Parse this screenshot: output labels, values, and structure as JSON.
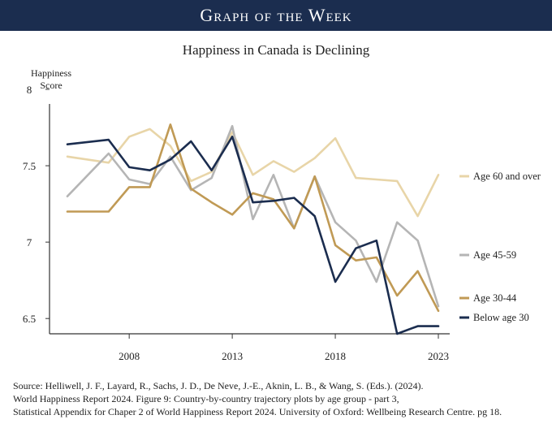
{
  "header": {
    "banner": "Graph of the Week"
  },
  "chart_data": {
    "type": "line",
    "title": "Happiness in Canada is Declining",
    "ylabel": [
      "Happiness",
      "Score"
    ],
    "xlabel": "",
    "xlim": [
      2005,
      2023
    ],
    "ylim": [
      6.4,
      8
    ],
    "yticks": [
      6.5,
      7,
      7.5,
      8
    ],
    "ytick_labels": [
      "6.5",
      "7",
      "7.5",
      "8"
    ],
    "xticks": [
      2008,
      2013,
      2018,
      2023
    ],
    "xtick_labels": [
      "2008",
      "2013",
      "2018",
      "2023"
    ],
    "grid": false,
    "legend": "right, labels at line ends",
    "x": [
      2005,
      2007,
      2008,
      2009,
      2010,
      2011,
      2012,
      2013,
      2014,
      2015,
      2016,
      2017,
      2018,
      2019,
      2020,
      2021,
      2022,
      2023
    ],
    "series": [
      {
        "name": "Age 60 and over",
        "color": "#e8d5a8",
        "values": [
          7.56,
          7.52,
          7.69,
          7.74,
          7.63,
          7.4,
          7.46,
          7.72,
          7.44,
          7.53,
          7.46,
          7.55,
          7.68,
          7.42,
          7.41,
          7.4,
          7.17,
          7.44
        ]
      },
      {
        "name": "Age 45-59",
        "color": "#b5b5b5",
        "values": [
          7.3,
          7.58,
          7.41,
          7.38,
          7.56,
          7.34,
          7.42,
          7.76,
          7.15,
          7.44,
          7.09,
          7.43,
          7.13,
          7.01,
          6.74,
          7.13,
          7.01,
          6.58
        ]
      },
      {
        "name": "Age 30-44",
        "color": "#c09a55",
        "values": [
          7.2,
          7.2,
          7.36,
          7.36,
          7.77,
          7.35,
          7.26,
          7.18,
          7.32,
          7.28,
          7.09,
          7.43,
          6.98,
          6.88,
          6.9,
          6.65,
          6.81,
          6.55
        ]
      },
      {
        "name": "Below age 30",
        "color": "#1b2d4f",
        "values": [
          7.64,
          7.67,
          7.49,
          7.47,
          7.54,
          7.66,
          7.47,
          7.69,
          7.26,
          7.27,
          7.29,
          7.17,
          6.74,
          6.96,
          7.01,
          6.4,
          6.45,
          6.45
        ]
      }
    ]
  },
  "source": {
    "lines": [
      "Source: Helliwell, J. F., Layard, R., Sachs, J. D., De Neve, J.-E., Aknin, L. B., & Wang, S. (Eds.). (2024).",
      "World Happiness Report 2024. Figure 9: Country-by-country trajectory plots by age group - part 3,",
      "Statistical Appendix for Chaper 2 of World Happiness Report 2024. University of Oxford: Wellbeing Research Centre. pg 18."
    ]
  }
}
